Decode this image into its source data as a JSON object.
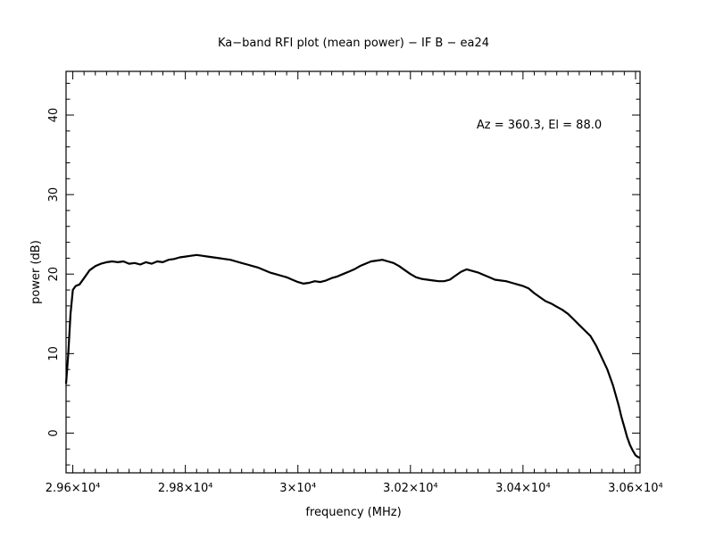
{
  "chart_data": {
    "type": "line",
    "title": "Ka−band RFI plot (mean power) − IF B − ea24",
    "xlabel": "frequency (MHz)",
    "ylabel": "power (dB)",
    "annotation": "Az = 360.3, El = 88.0",
    "xlim": [
      29588,
      30608
    ],
    "ylim": [
      -5,
      45.5
    ],
    "grid": false,
    "line_color": "#000000",
    "x_ticks": [
      {
        "value": 29600,
        "label": "2.96×10⁴"
      },
      {
        "value": 29800,
        "label": "2.98×10⁴"
      },
      {
        "value": 30000,
        "label": "3×10⁴"
      },
      {
        "value": 30200,
        "label": "3.02×10⁴"
      },
      {
        "value": 30400,
        "label": "3.04×10⁴"
      },
      {
        "value": 30600,
        "label": "3.06×10⁴"
      }
    ],
    "x_minor_step": 20,
    "y_ticks": [
      {
        "value": 0,
        "label": "0"
      },
      {
        "value": 10,
        "label": "10"
      },
      {
        "value": 20,
        "label": "20"
      },
      {
        "value": 30,
        "label": "30"
      },
      {
        "value": 40,
        "label": "40"
      }
    ],
    "y_minor_step": 2,
    "series": [
      {
        "x": [
          29588,
          29592,
          29596,
          29600,
          29605,
          29612,
          29620,
          29630,
          29640,
          29650,
          29660,
          29670,
          29680,
          29690,
          29700,
          29710,
          29720,
          29730,
          29740,
          29750,
          29760,
          29770,
          29780,
          29790,
          29800,
          29810,
          29820,
          29830,
          29840,
          29850,
          29860,
          29870,
          29880,
          29890,
          29900,
          29910,
          29920,
          29930,
          29940,
          29950,
          29960,
          29970,
          29980,
          29990,
          30000,
          30010,
          30020,
          30030,
          30040,
          30050,
          30060,
          30070,
          30080,
          30090,
          30100,
          30110,
          30120,
          30130,
          30140,
          30150,
          30160,
          30170,
          30180,
          30190,
          30200,
          30210,
          30220,
          30230,
          30240,
          30250,
          30260,
          30270,
          30280,
          30290,
          30300,
          30310,
          30320,
          30330,
          30340,
          30350,
          30360,
          30370,
          30380,
          30390,
          30400,
          30410,
          30420,
          30430,
          30440,
          30450,
          30460,
          30470,
          30480,
          30490,
          30500,
          30510,
          30520,
          30530,
          30540,
          30550,
          30560,
          30570,
          30575,
          30580,
          30585,
          30590,
          30595,
          30600,
          30604,
          30608
        ],
        "y": [
          6.2,
          10.0,
          15.0,
          18.0,
          18.5,
          18.7,
          19.5,
          20.5,
          21.0,
          21.3,
          21.5,
          21.6,
          21.5,
          21.6,
          21.3,
          21.4,
          21.2,
          21.5,
          21.3,
          21.6,
          21.5,
          21.8,
          21.9,
          22.1,
          22.2,
          22.3,
          22.4,
          22.3,
          22.2,
          22.1,
          22.0,
          21.9,
          21.8,
          21.6,
          21.4,
          21.2,
          21.0,
          20.8,
          20.5,
          20.2,
          20.0,
          19.8,
          19.6,
          19.3,
          19.0,
          18.8,
          18.9,
          19.1,
          19.0,
          19.2,
          19.5,
          19.7,
          20.0,
          20.3,
          20.6,
          21.0,
          21.3,
          21.6,
          21.7,
          21.8,
          21.6,
          21.4,
          21.0,
          20.5,
          20.0,
          19.6,
          19.4,
          19.3,
          19.2,
          19.1,
          19.1,
          19.3,
          19.8,
          20.3,
          20.6,
          20.4,
          20.2,
          19.9,
          19.6,
          19.3,
          19.2,
          19.1,
          18.9,
          18.7,
          18.5,
          18.2,
          17.6,
          17.1,
          16.6,
          16.3,
          15.9,
          15.5,
          15.0,
          14.3,
          13.6,
          12.9,
          12.2,
          11.0,
          9.5,
          8.0,
          6.0,
          3.5,
          2.0,
          0.8,
          -0.5,
          -1.5,
          -2.2,
          -2.8,
          -3.0,
          -3.1
        ]
      }
    ]
  }
}
